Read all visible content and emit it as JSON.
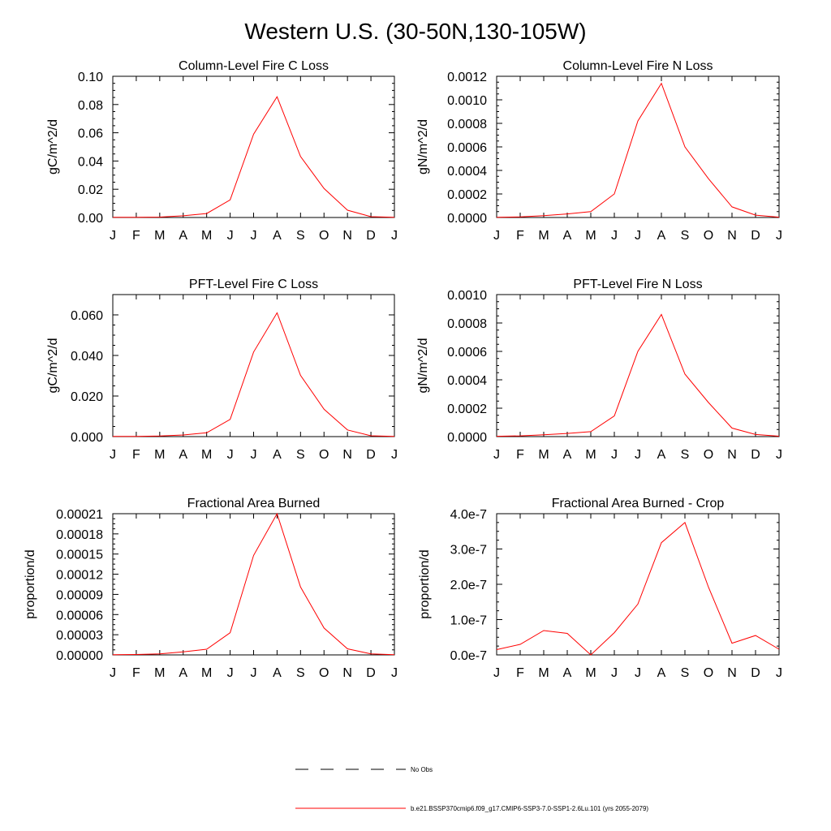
{
  "figure_title": "Western U.S. (30-50N,130-105W)",
  "legend": {
    "position": "bottom-center",
    "entries": [
      {
        "label": "No Obs",
        "style": "dashed",
        "color": "#000000"
      },
      {
        "label": "b.e21.BSSP370cmip6.f09_g17.CMIP6-SSP3-7.0-SSP1-2.6Lu.101 (yrs 2055-2079)",
        "style": "solid",
        "color": "#ff0000"
      }
    ]
  },
  "chart_data": [
    {
      "type": "line",
      "title": "Column-Level Fire C Loss",
      "ylabel": "gC/m^2/d",
      "xlabel": "",
      "x": [
        "J",
        "F",
        "M",
        "A",
        "M",
        "J",
        "J",
        "A",
        "S",
        "O",
        "N",
        "D",
        "J"
      ],
      "ylim": [
        0,
        0.1
      ],
      "yticks": [
        "0.00",
        "0.02",
        "0.04",
        "0.06",
        "0.08",
        "0.10"
      ],
      "grid": false,
      "series": [
        {
          "color": "#ff0000",
          "values": [
            0.0001,
            0.0001,
            0.0003,
            0.0012,
            0.0028,
            0.0125,
            0.059,
            0.0855,
            0.0432,
            0.0205,
            0.0052,
            0.0006,
            0.0001
          ]
        }
      ]
    },
    {
      "type": "line",
      "title": "Column-Level Fire N Loss",
      "ylabel": "gN/m^2/d",
      "xlabel": "",
      "x": [
        "J",
        "F",
        "M",
        "A",
        "M",
        "J",
        "J",
        "A",
        "S",
        "O",
        "N",
        "D",
        "J"
      ],
      "ylim": [
        0,
        0.0012
      ],
      "yticks": [
        "0.0000",
        "0.0002",
        "0.0004",
        "0.0006",
        "0.0008",
        "0.0010",
        "0.0012"
      ],
      "grid": false,
      "series": [
        {
          "color": "#ff0000",
          "values": [
            2e-06,
            5e-06,
            1.5e-05,
            3e-05,
            5e-05,
            0.0002,
            0.00082,
            0.00114,
            0.0006,
            0.00033,
            9e-05,
            2e-05,
            3e-06
          ]
        }
      ]
    },
    {
      "type": "line",
      "title": "PFT-Level Fire C Loss",
      "ylabel": "gC/m^2/d",
      "xlabel": "",
      "x": [
        "J",
        "F",
        "M",
        "A",
        "M",
        "J",
        "J",
        "A",
        "S",
        "O",
        "N",
        "D",
        "J"
      ],
      "ylim": [
        0,
        0.07
      ],
      "yticks": [
        "0.000",
        "0.020",
        "0.040",
        "0.060"
      ],
      "ytick_values": [
        0,
        0.02,
        0.04,
        0.06
      ],
      "grid": false,
      "series": [
        {
          "color": "#ff0000",
          "values": [
            0.0001,
            0.0001,
            0.0003,
            0.0008,
            0.0019,
            0.0085,
            0.0417,
            0.061,
            0.0302,
            0.0135,
            0.0033,
            0.0004,
            0.0001
          ]
        }
      ]
    },
    {
      "type": "line",
      "title": "PFT-Level Fire N Loss",
      "ylabel": "gN/m^2/d",
      "xlabel": "",
      "x": [
        "J",
        "F",
        "M",
        "A",
        "M",
        "J",
        "J",
        "A",
        "S",
        "O",
        "N",
        "D",
        "J"
      ],
      "ylim": [
        0,
        0.001
      ],
      "yticks": [
        "0.0000",
        "0.0002",
        "0.0004",
        "0.0006",
        "0.0008",
        "0.0010"
      ],
      "grid": false,
      "series": [
        {
          "color": "#ff0000",
          "values": [
            2e-06,
            5e-06,
            1.3e-05,
            2.2e-05,
            3.5e-05,
            0.000145,
            0.0006,
            0.00086,
            0.00044,
            0.00024,
            6e-05,
            1.5e-05,
            3e-06
          ]
        }
      ]
    },
    {
      "type": "line",
      "title": "Fractional Area Burned",
      "ylabel": "proportion/d",
      "xlabel": "",
      "x": [
        "J",
        "F",
        "M",
        "A",
        "M",
        "J",
        "J",
        "A",
        "S",
        "O",
        "N",
        "D",
        "J"
      ],
      "ylim": [
        0,
        0.00021
      ],
      "yticks": [
        "0.00000",
        "0.00003",
        "0.00006",
        "0.00009",
        "0.00012",
        "0.00015",
        "0.00018",
        "0.00021"
      ],
      "grid": false,
      "series": [
        {
          "color": "#ff0000",
          "values": [
            2e-07,
            6e-07,
            1.5e-06,
            4.5e-06,
            8.5e-06,
            3.3e-05,
            0.000148,
            0.00021,
            0.000101,
            4e-05,
            9e-06,
            1.5e-06,
            3e-07
          ]
        }
      ]
    },
    {
      "type": "line",
      "title": "Fractional Area Burned - Crop",
      "ylabel": "proportion/d",
      "xlabel": "",
      "x": [
        "J",
        "F",
        "M",
        "A",
        "M",
        "J",
        "J",
        "A",
        "S",
        "O",
        "N",
        "D",
        "J"
      ],
      "ylim": [
        0,
        4e-07
      ],
      "yticks": [
        "0.0e-7",
        "1.0e-7",
        "2.0e-7",
        "3.0e-7",
        "4.0e-7"
      ],
      "grid": false,
      "series": [
        {
          "color": "#ff0000",
          "values": [
            1.5e-08,
            3e-08,
            6.9e-08,
            6.1e-08,
            0,
            6.3e-08,
            1.44e-07,
            3.18e-07,
            3.75e-07,
            1.92e-07,
            3.3e-08,
            5.5e-08,
            1.6e-08
          ]
        }
      ]
    }
  ]
}
